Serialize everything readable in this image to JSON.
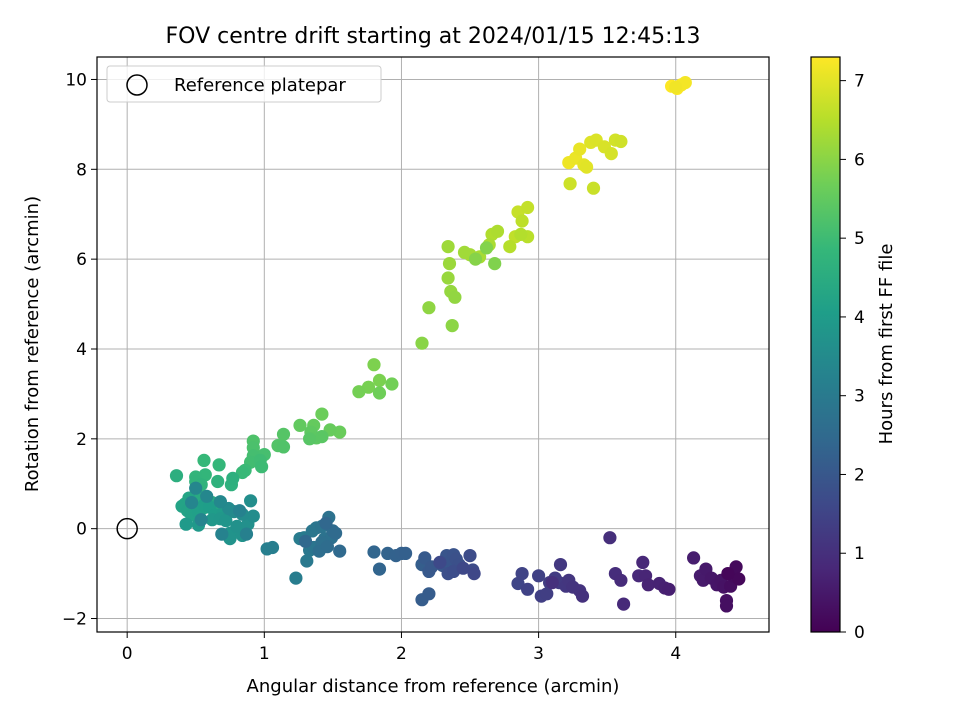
{
  "chart_data": {
    "type": "scatter",
    "title": "FOV centre drift starting at 2024/01/15 12:45:13",
    "xlabel": "Angular distance from reference (arcmin)",
    "ylabel": "Rotation from reference (arcmin)",
    "xlim": [
      -0.22,
      4.68
    ],
    "ylim": [
      -2.3,
      10.5
    ],
    "xticks": [
      0,
      1,
      2,
      3,
      4
    ],
    "yticks": [
      -2,
      0,
      2,
      4,
      6,
      8,
      10
    ],
    "grid": true,
    "legend": {
      "placement": "top-left",
      "entries": [
        "Reference platepar"
      ]
    },
    "reference_point": {
      "x": 0,
      "y": 0
    },
    "colorbar": {
      "label": "Hours from first FF file",
      "range": [
        0,
        7.3
      ],
      "ticks": [
        0,
        1,
        2,
        3,
        4,
        5,
        6,
        7
      ],
      "colormap": [
        "#440154",
        "#482878",
        "#3e4989",
        "#31688e",
        "#26828e",
        "#1f9e89",
        "#35b779",
        "#6ece58",
        "#b5de2b",
        "#fde725"
      ]
    },
    "series": [
      {
        "values": [
          [
            3.97,
            9.85
          ],
          [
            4.01,
            9.8
          ],
          [
            4.04,
            9.88
          ],
          [
            4.07,
            9.93
          ],
          [
            4.0,
            9.83
          ],
          [
            3.22,
            8.15
          ],
          [
            3.27,
            8.25
          ],
          [
            3.3,
            8.45
          ],
          [
            3.33,
            8.1
          ],
          [
            3.35,
            8.05
          ],
          [
            3.38,
            8.6
          ],
          [
            3.42,
            8.65
          ],
          [
            3.48,
            8.5
          ],
          [
            3.53,
            8.35
          ],
          [
            3.56,
            8.65
          ],
          [
            3.6,
            8.62
          ],
          [
            3.23,
            7.68
          ],
          [
            3.4,
            7.58
          ],
          [
            2.85,
            7.05
          ],
          [
            2.92,
            7.15
          ],
          [
            2.83,
            6.5
          ],
          [
            2.88,
            6.85
          ],
          [
            2.92,
            6.5
          ],
          [
            2.79,
            6.28
          ],
          [
            2.87,
            6.55
          ],
          [
            2.66,
            6.55
          ],
          [
            2.7,
            6.62
          ],
          [
            2.64,
            6.32
          ],
          [
            2.57,
            6.05
          ],
          [
            2.5,
            6.1
          ],
          [
            2.46,
            6.15
          ],
          [
            2.34,
            6.28
          ],
          [
            2.35,
            5.9
          ],
          [
            2.34,
            5.58
          ],
          [
            2.36,
            5.28
          ],
          [
            2.39,
            5.15
          ],
          [
            2.2,
            4.92
          ],
          [
            2.37,
            4.52
          ],
          [
            2.15,
            4.13
          ],
          [
            2.54,
            6.0
          ],
          [
            2.62,
            6.25
          ],
          [
            2.68,
            5.9
          ],
          [
            1.8,
            3.65
          ],
          [
            1.84,
            3.3
          ],
          [
            1.76,
            3.15
          ],
          [
            1.69,
            3.05
          ],
          [
            1.93,
            3.22
          ],
          [
            1.84,
            3.02
          ],
          [
            1.42,
            2.55
          ],
          [
            1.55,
            2.15
          ],
          [
            1.48,
            2.2
          ],
          [
            1.36,
            2.3
          ],
          [
            1.26,
            2.3
          ],
          [
            1.34,
            2.15
          ],
          [
            1.38,
            2.02
          ],
          [
            1.42,
            2.05
          ],
          [
            1.33,
            2.0
          ],
          [
            1.14,
            2.1
          ],
          [
            1.1,
            1.85
          ],
          [
            1.14,
            1.82
          ],
          [
            0.92,
            1.95
          ],
          [
            0.92,
            1.8
          ],
          [
            0.96,
            1.6
          ],
          [
            1.0,
            1.65
          ],
          [
            0.92,
            1.62
          ],
          [
            0.9,
            1.48
          ],
          [
            0.97,
            1.52
          ],
          [
            0.98,
            1.38
          ],
          [
            0.86,
            1.3
          ],
          [
            0.84,
            1.25
          ],
          [
            0.56,
            1.52
          ],
          [
            0.67,
            1.42
          ],
          [
            0.57,
            1.2
          ],
          [
            0.5,
            1.15
          ],
          [
            0.5,
            1.05
          ],
          [
            0.54,
            0.98
          ],
          [
            0.66,
            1.05
          ],
          [
            0.76,
            0.98
          ],
          [
            0.77,
            1.12
          ],
          [
            0.36,
            1.18
          ],
          [
            0.42,
            0.55
          ],
          [
            0.46,
            0.48
          ],
          [
            0.5,
            0.6
          ],
          [
            0.52,
            0.72
          ],
          [
            0.58,
            0.62
          ],
          [
            0.62,
            0.58
          ],
          [
            0.55,
            0.45
          ],
          [
            0.66,
            0.5
          ],
          [
            0.45,
            0.68
          ],
          [
            0.4,
            0.5
          ],
          [
            0.44,
            0.4
          ],
          [
            0.47,
            0.3
          ],
          [
            0.52,
            0.36
          ],
          [
            0.56,
            0.52
          ],
          [
            0.6,
            0.48
          ],
          [
            0.64,
            0.3
          ],
          [
            0.7,
            0.35
          ],
          [
            0.43,
            0.1
          ],
          [
            0.52,
            0.08
          ],
          [
            0.62,
            0.2
          ],
          [
            0.68,
            0.22
          ],
          [
            0.72,
            0.18
          ],
          [
            0.75,
            -0.1
          ],
          [
            0.75,
            -0.22
          ],
          [
            0.84,
            -0.15
          ],
          [
            0.8,
            0.05
          ],
          [
            0.88,
            0.1
          ],
          [
            0.9,
            0.62
          ],
          [
            0.92,
            0.28
          ],
          [
            0.84,
            0.32
          ],
          [
            0.78,
            0.38
          ],
          [
            0.74,
            0.45
          ],
          [
            0.68,
            0.6
          ],
          [
            0.58,
            0.72
          ],
          [
            0.5,
            0.9
          ],
          [
            0.47,
            0.58
          ],
          [
            0.54,
            0.2
          ],
          [
            0.69,
            -0.12
          ],
          [
            0.82,
            0.4
          ],
          [
            0.87,
            -0.12
          ],
          [
            1.02,
            -0.45
          ],
          [
            1.06,
            -0.42
          ],
          [
            1.23,
            -1.1
          ],
          [
            1.26,
            -0.22
          ],
          [
            1.29,
            -0.2
          ],
          [
            1.31,
            -0.72
          ],
          [
            1.33,
            -0.48
          ],
          [
            1.35,
            -0.05
          ],
          [
            1.38,
            0.02
          ],
          [
            1.36,
            -0.42
          ],
          [
            1.42,
            0.05
          ],
          [
            1.44,
            -0.22
          ],
          [
            1.47,
            0.25
          ],
          [
            1.49,
            -0.2
          ],
          [
            1.42,
            -0.3
          ],
          [
            1.4,
            -0.5
          ],
          [
            1.46,
            -0.4
          ],
          [
            1.5,
            -0.05
          ],
          [
            1.52,
            -0.1
          ],
          [
            1.55,
            -0.5
          ],
          [
            1.3,
            -0.28
          ],
          [
            1.45,
            0.12
          ],
          [
            1.8,
            -0.52
          ],
          [
            1.84,
            -0.9
          ],
          [
            1.9,
            -0.55
          ],
          [
            1.96,
            -0.6
          ],
          [
            2.0,
            -0.55
          ],
          [
            2.03,
            -0.55
          ],
          [
            2.15,
            -0.8
          ],
          [
            2.15,
            -1.58
          ],
          [
            2.2,
            -1.45
          ],
          [
            2.17,
            -0.65
          ],
          [
            2.2,
            -0.95
          ],
          [
            2.22,
            -0.85
          ],
          [
            2.3,
            -0.82
          ],
          [
            2.33,
            -0.6
          ],
          [
            2.36,
            -0.72
          ],
          [
            2.38,
            -0.58
          ],
          [
            2.4,
            -0.68
          ],
          [
            2.42,
            -0.8
          ],
          [
            2.34,
            -1.0
          ],
          [
            2.38,
            -0.95
          ],
          [
            2.5,
            -0.6
          ],
          [
            2.52,
            -0.92
          ],
          [
            2.28,
            -0.75
          ],
          [
            2.45,
            -0.88
          ],
          [
            2.53,
            -1.0
          ],
          [
            2.85,
            -1.22
          ],
          [
            2.88,
            -1.0
          ],
          [
            2.92,
            -1.35
          ],
          [
            3.0,
            -1.05
          ],
          [
            3.02,
            -1.5
          ],
          [
            3.06,
            -1.45
          ],
          [
            3.08,
            -1.2
          ],
          [
            3.12,
            -1.1
          ],
          [
            3.15,
            -1.2
          ],
          [
            3.16,
            -0.8
          ],
          [
            3.2,
            -1.28
          ],
          [
            3.22,
            -1.15
          ],
          [
            3.25,
            -1.3
          ],
          [
            3.3,
            -1.38
          ],
          [
            3.32,
            -1.5
          ],
          [
            3.1,
            -1.2
          ],
          [
            3.52,
            -0.2
          ],
          [
            3.56,
            -1.0
          ],
          [
            3.6,
            -1.15
          ],
          [
            3.62,
            -1.68
          ],
          [
            3.73,
            -1.05
          ],
          [
            3.76,
            -0.75
          ],
          [
            3.78,
            -1.05
          ],
          [
            3.8,
            -1.25
          ],
          [
            3.88,
            -1.22
          ],
          [
            3.92,
            -1.32
          ],
          [
            3.95,
            -1.35
          ],
          [
            4.13,
            -0.65
          ],
          [
            4.18,
            -1.05
          ],
          [
            4.2,
            -1.15
          ],
          [
            4.22,
            -0.9
          ],
          [
            4.26,
            -1.1
          ],
          [
            4.3,
            -1.25
          ],
          [
            4.33,
            -1.15
          ],
          [
            4.35,
            -1.3
          ],
          [
            4.37,
            -1.6
          ],
          [
            4.37,
            -1.72
          ],
          [
            4.4,
            -1.28
          ],
          [
            4.42,
            -1.05
          ],
          [
            4.44,
            -0.85
          ],
          [
            4.46,
            -1.12
          ],
          [
            4.38,
            -1.0
          ]
        ]
      }
    ]
  }
}
